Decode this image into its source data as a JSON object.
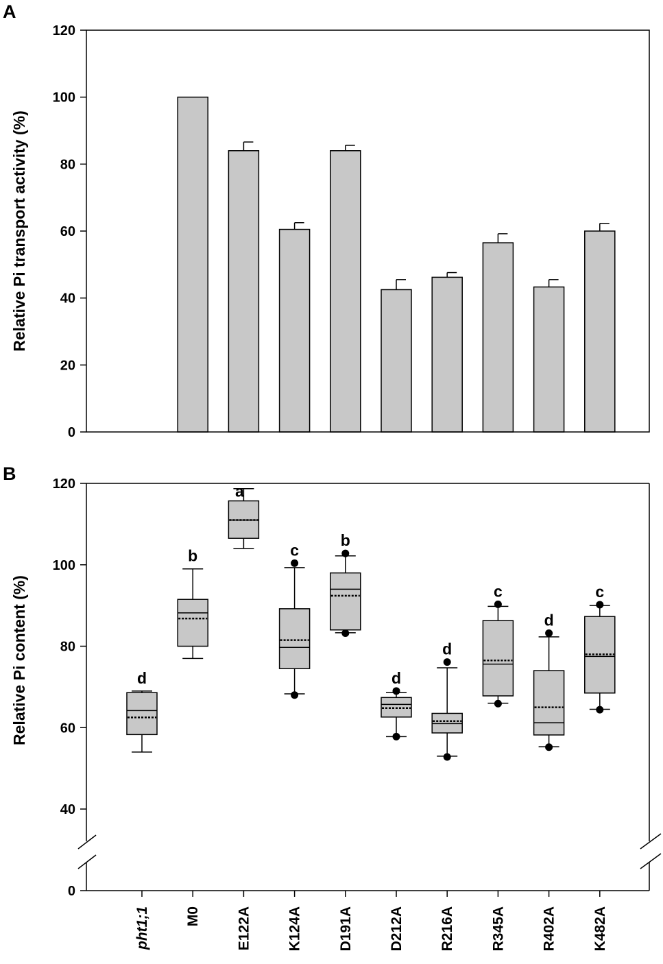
{
  "chart_data": [
    {
      "type": "bar",
      "panel_label": "A",
      "title": "",
      "xlabel": "",
      "ylabel": "Relative Pi transport activity (%)",
      "ylim": [
        0,
        120
      ],
      "yticks": [
        0,
        20,
        40,
        60,
        80,
        100,
        120
      ],
      "categories": [
        "pht1;1",
        "M0",
        "E122A",
        "K124A",
        "D191A",
        "D212A",
        "R216A",
        "R345A",
        "R402A",
        "K482A"
      ],
      "values": [
        null,
        100,
        84,
        60.5,
        84,
        42.5,
        46.2,
        56.5,
        43.3,
        60
      ],
      "errors": [
        null,
        0,
        2.6,
        2,
        1.6,
        3,
        1.4,
        2.7,
        2.2,
        2.3
      ],
      "bar_color": "#c8c8c8"
    },
    {
      "type": "box",
      "panel_label": "B",
      "title": "",
      "xlabel": "",
      "ylabel": "Relative Pi content (%)",
      "ylim": [
        0,
        120
      ],
      "axis_break": [
        0,
        40
      ],
      "yticks": [
        0,
        40,
        60,
        80,
        100,
        120
      ],
      "categories": [
        "pht1;1",
        "M0",
        "E122A",
        "K124A",
        "D191A",
        "D212A",
        "R216A",
        "R345A",
        "R402A",
        "K482A"
      ],
      "boxes": [
        {
          "whisker_low": 54,
          "q1": 58.3,
          "median": 64.2,
          "mean": 62.5,
          "q3": 68.6,
          "whisker_high": 69,
          "outliers": [],
          "letter": "d"
        },
        {
          "whisker_low": 77,
          "q1": 80,
          "median": 88.2,
          "mean": 86.8,
          "q3": 91.5,
          "whisker_high": 99,
          "outliers": [],
          "letter": "b"
        },
        {
          "whisker_low": 104,
          "q1": 106.5,
          "median": 111,
          "mean": 111,
          "q3": 115.7,
          "whisker_high": 118.7,
          "outliers": [],
          "letter": "a"
        },
        {
          "whisker_low": 68.3,
          "q1": 74.5,
          "median": 79.7,
          "mean": 81.5,
          "q3": 89.2,
          "whisker_high": 99.3,
          "outliers": [
            68,
            100.4
          ],
          "letter": "c"
        },
        {
          "whisker_low": 83.3,
          "q1": 84,
          "median": 94,
          "mean": 92.4,
          "q3": 98,
          "whisker_high": 102.2,
          "outliers": [
            83.2,
            102.8
          ],
          "letter": "b"
        },
        {
          "whisker_low": 57.8,
          "q1": 62.6,
          "median": 65.7,
          "mean": 64.8,
          "q3": 67.4,
          "whisker_high": 68.6,
          "outliers": [
            57.8,
            69
          ],
          "letter": "d"
        },
        {
          "whisker_low": 53,
          "q1": 58.7,
          "median": 61,
          "mean": 61.6,
          "q3": 63.5,
          "whisker_high": 74.7,
          "outliers": [
            52.8,
            76.1
          ],
          "letter": "d"
        },
        {
          "whisker_low": 66,
          "q1": 67.8,
          "median": 75.6,
          "mean": 76.5,
          "q3": 86.3,
          "whisker_high": 89.8,
          "outliers": [
            65.9,
            90.3
          ],
          "letter": "c"
        },
        {
          "whisker_low": 55.3,
          "q1": 58.2,
          "median": 61.2,
          "mean": 65,
          "q3": 74,
          "whisker_high": 82.3,
          "outliers": [
            55.2,
            83.2
          ],
          "letter": "d"
        },
        {
          "whisker_low": 64.5,
          "q1": 68.5,
          "median": 77.5,
          "mean": 78,
          "q3": 87.3,
          "whisker_high": 90,
          "outliers": [
            64.4,
            90.2
          ],
          "letter": "c"
        }
      ],
      "box_color": "#c8c8c8"
    }
  ]
}
